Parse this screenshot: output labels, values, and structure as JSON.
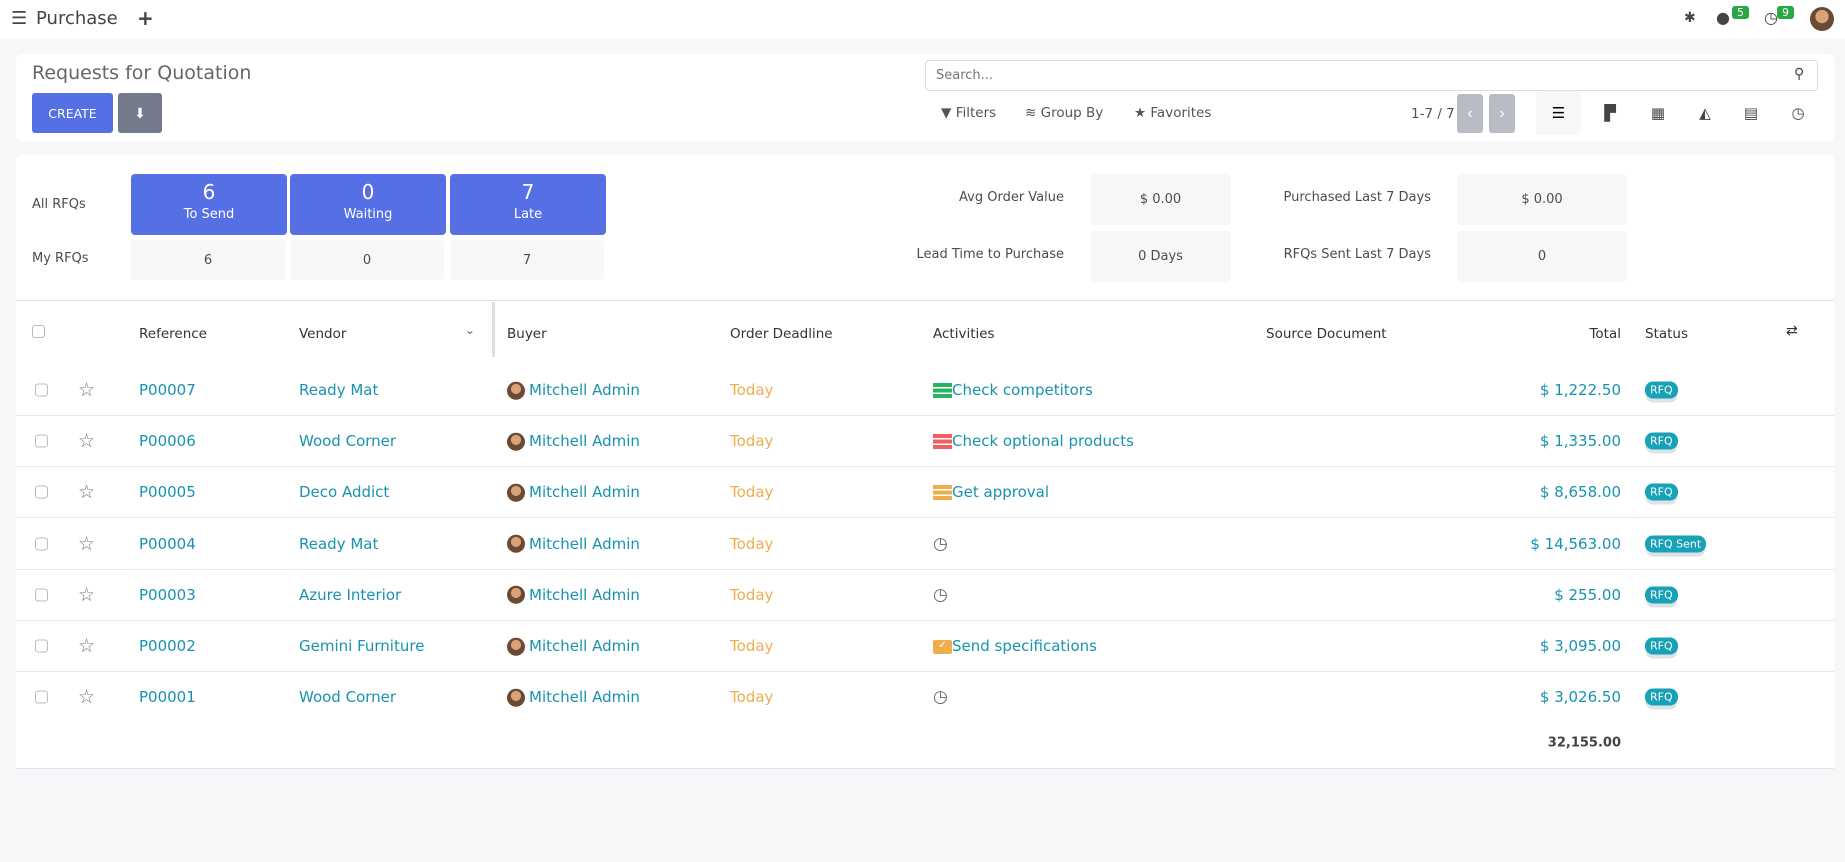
{
  "app": {
    "title": "Purchase",
    "notifications": {
      "messages": "5",
      "activities": "9"
    }
  },
  "control": {
    "title": "Requests for Quotation",
    "create_label": "CREATE",
    "search_placeholder": "Search...",
    "filters": "Filters",
    "group_by": "Group By",
    "favorites": "Favorites",
    "pager": "1-7 / 7"
  },
  "dashboard": {
    "all_label": "All RFQs",
    "my_label": "My RFQs",
    "tiles": [
      {
        "count": "6",
        "label": "To Send",
        "mine": "6"
      },
      {
        "count": "0",
        "label": "Waiting",
        "mine": "0"
      },
      {
        "count": "7",
        "label": "Late",
        "mine": "7"
      }
    ],
    "kpis": [
      {
        "label": "Avg Order Value",
        "value": "$ 0.00"
      },
      {
        "label": "Purchased Last 7 Days",
        "value": "$ 0.00"
      },
      {
        "label": "Lead Time to Purchase",
        "value": "0 Days"
      },
      {
        "label": "RFQs Sent Last 7 Days",
        "value": "0"
      }
    ]
  },
  "table": {
    "headers": {
      "reference": "Reference",
      "vendor": "Vendor",
      "buyer": "Buyer",
      "deadline": "Order Deadline",
      "activities": "Activities",
      "source": "Source Document",
      "total": "Total",
      "status": "Status"
    },
    "rows": [
      {
        "ref": "P00007",
        "vendor": "Ready Mat",
        "buyer": "Mitchell Admin",
        "deadline": "Today",
        "activity": "Check competitors",
        "activity_icon": "activity-list-icon",
        "activity_color": "#28b463",
        "total": "$ 1,222.50",
        "status": "RFQ"
      },
      {
        "ref": "P00006",
        "vendor": "Wood Corner",
        "buyer": "Mitchell Admin",
        "deadline": "Today",
        "activity": "Check optional products",
        "activity_icon": "activity-list-icon",
        "activity_color": "#f06060",
        "total": "$ 1,335.00",
        "status": "RFQ"
      },
      {
        "ref": "P00005",
        "vendor": "Deco Addict",
        "buyer": "Mitchell Admin",
        "deadline": "Today",
        "activity": "Get approval",
        "activity_icon": "activity-list-icon",
        "activity_color": "#f0ad4e",
        "total": "$ 8,658.00",
        "status": "RFQ"
      },
      {
        "ref": "P00004",
        "vendor": "Ready Mat",
        "buyer": "Mitchell Admin",
        "deadline": "Today",
        "activity": "",
        "activity_icon": "clock-icon",
        "activity_color": "#666",
        "total": "$ 14,563.00",
        "status": "RFQ Sent"
      },
      {
        "ref": "P00003",
        "vendor": "Azure Interior",
        "buyer": "Mitchell Admin",
        "deadline": "Today",
        "activity": "",
        "activity_icon": "clock-icon",
        "activity_color": "#666",
        "total": "$ 255.00",
        "status": "RFQ"
      },
      {
        "ref": "P00002",
        "vendor": "Gemini Furniture",
        "buyer": "Mitchell Admin",
        "deadline": "Today",
        "activity": "Send specifications",
        "activity_icon": "envelope-icon",
        "activity_color": "#f0ad4e",
        "total": "$ 3,095.00",
        "status": "RFQ"
      },
      {
        "ref": "P00001",
        "vendor": "Wood Corner",
        "buyer": "Mitchell Admin",
        "deadline": "Today",
        "activity": "",
        "activity_icon": "clock-icon",
        "activity_color": "#666",
        "total": "$ 3,026.50",
        "status": "RFQ"
      }
    ],
    "sum_total": "32,155.00"
  },
  "colors": {
    "primary": "#5570e4",
    "link": "#1793b0",
    "deadline": "#f0ad4e",
    "badge": "#17a2b8"
  }
}
